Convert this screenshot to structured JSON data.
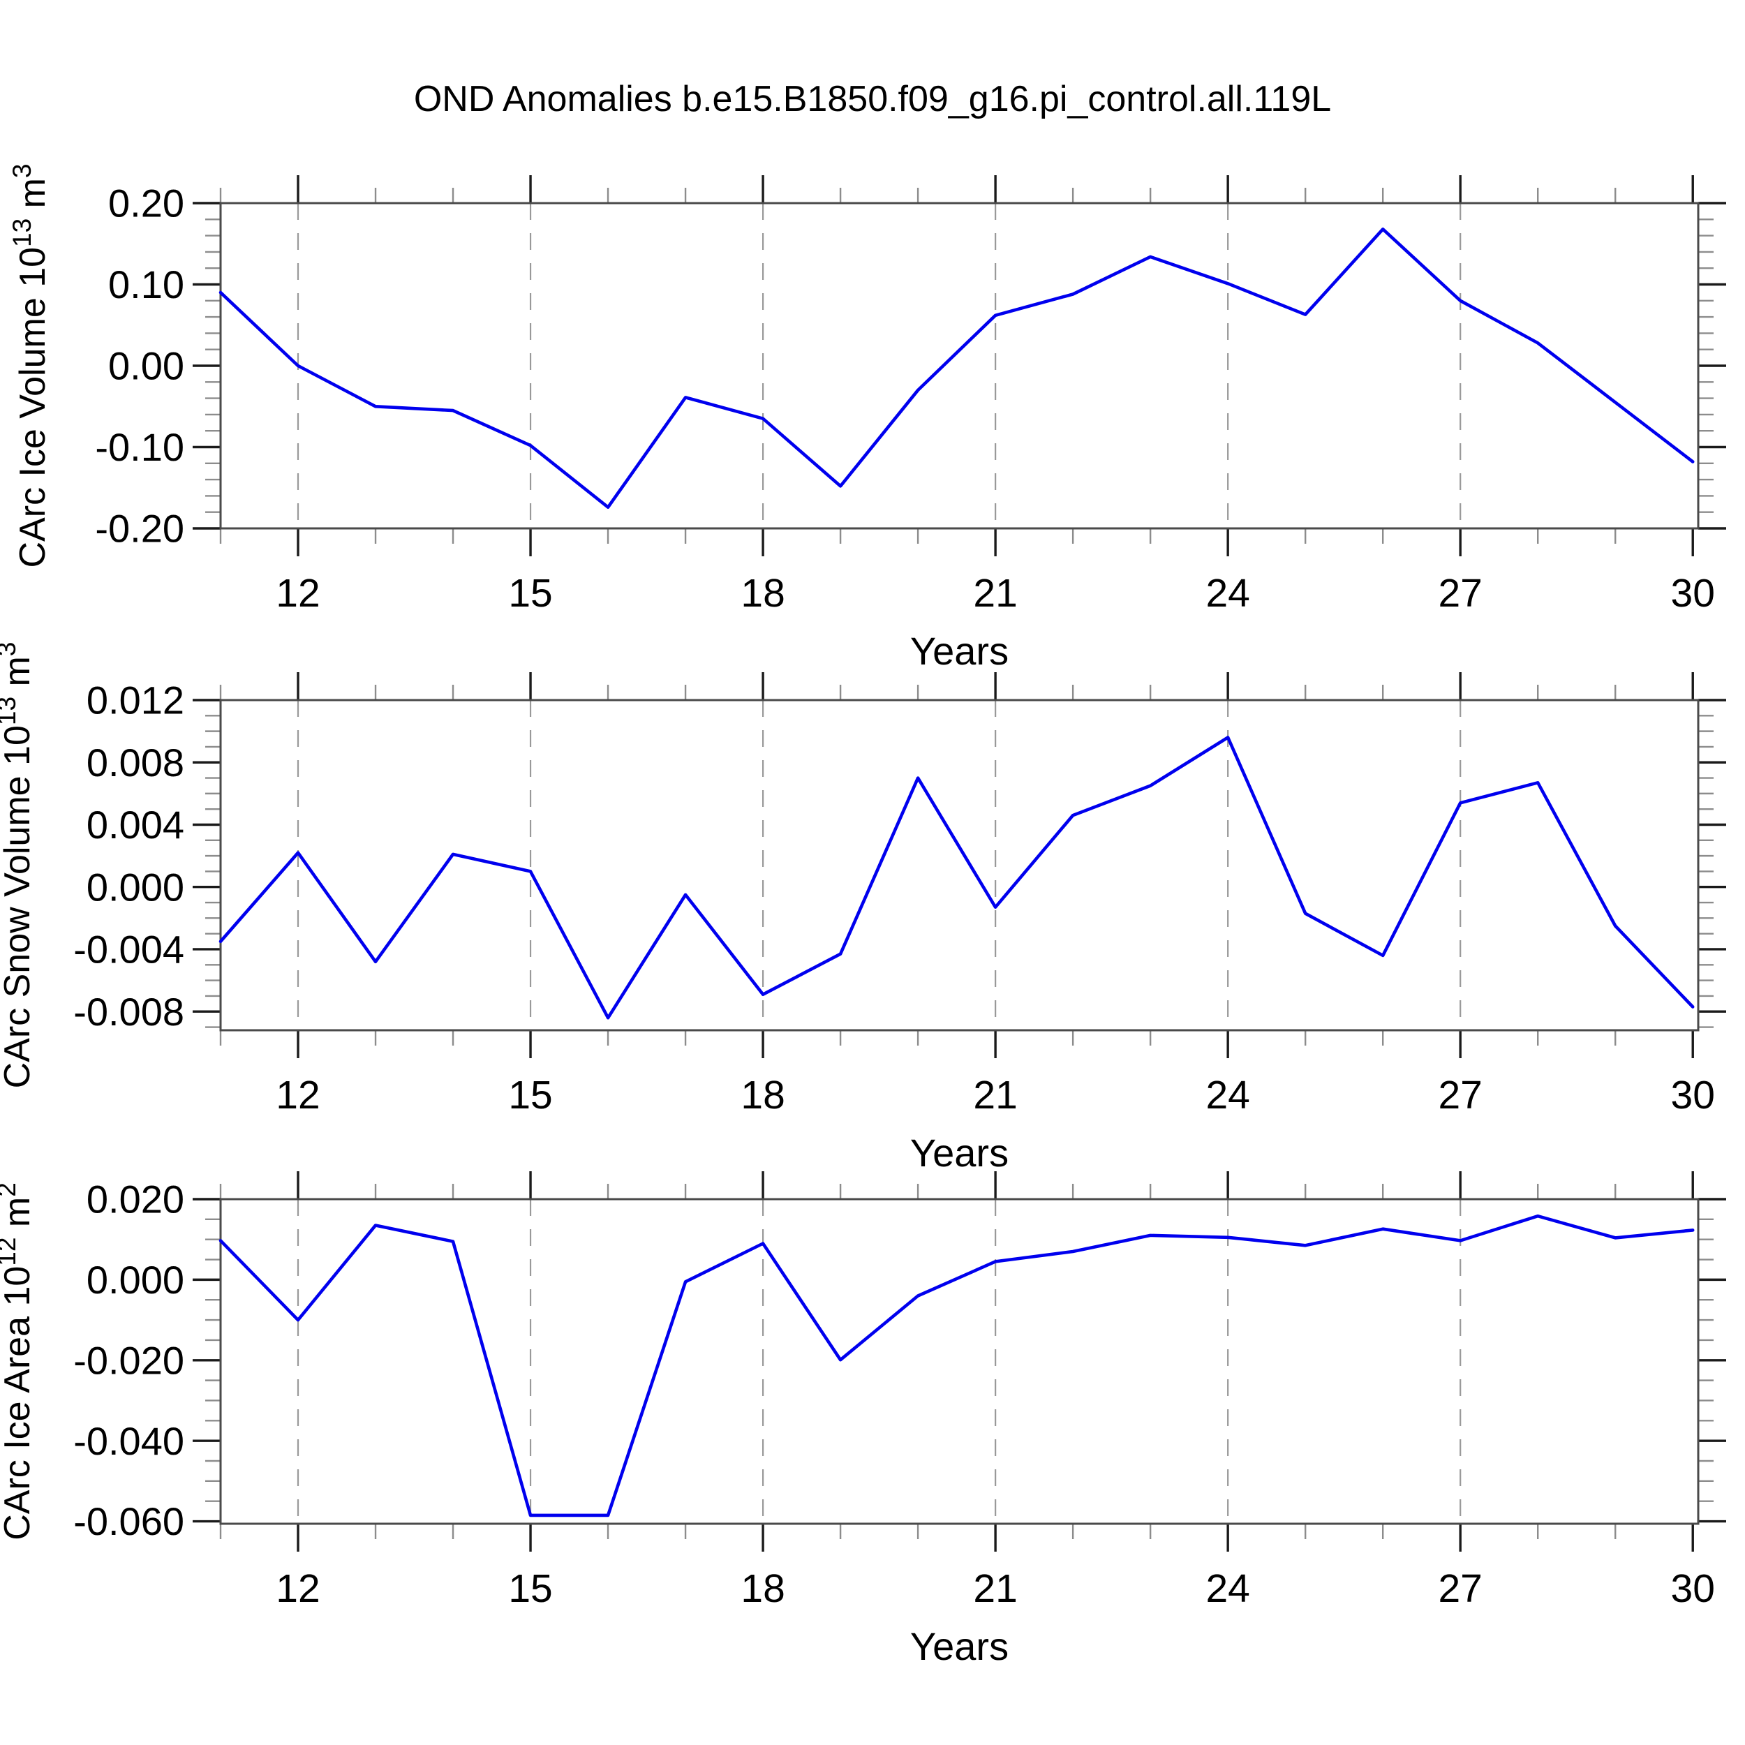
{
  "title": "OND Anomalies b.e15.B1850.f09_g16.pi_control.all.119L",
  "x_axis": {
    "label": "Years",
    "xlim": [
      11,
      30.07
    ],
    "major_ticks": [
      12,
      15,
      18,
      21,
      24,
      27,
      30
    ],
    "minor_step": 1,
    "grid": "vertical-dashed"
  },
  "colors": {
    "line": "#0000EE",
    "box": "#4a4a4a",
    "major_tick": "#1a1a1a",
    "minor_tick": "#8c8c8c",
    "grid": "#999999",
    "text": "#000000",
    "background": "#ffffff"
  },
  "chart_data": [
    {
      "id": "ice-volume",
      "type": "line",
      "ylabel_runs": [
        {
          "t": "CArc Ice Volume 10"
        },
        {
          "t": "13",
          "sup": true
        },
        {
          "t": " m"
        },
        {
          "t": "3",
          "sup": true
        }
      ],
      "ylim": [
        -0.2,
        0.2
      ],
      "ytick_vals": [
        0.2,
        0.1,
        0.0,
        -0.1,
        -0.2
      ],
      "ytick_labels": [
        "0.20",
        "0.10",
        "0.00",
        "-0.10",
        "-0.20"
      ],
      "yminor_step": 0.02,
      "x": [
        11,
        12,
        13,
        14,
        15,
        16,
        17,
        18,
        19,
        20,
        21,
        22,
        23,
        24,
        25,
        26,
        27,
        28,
        29,
        30
      ],
      "values": [
        0.09,
        0.0,
        -0.05,
        -0.055,
        -0.098,
        -0.174,
        -0.039,
        -0.065,
        -0.148,
        -0.03,
        0.062,
        0.088,
        0.134,
        0.101,
        0.063,
        0.168,
        0.08,
        0.028,
        -0.045,
        -0.118
      ]
    },
    {
      "id": "snow-volume",
      "type": "line",
      "ylabel_runs": [
        {
          "t": "CArc Snow Volume 10"
        },
        {
          "t": "13",
          "sup": true
        },
        {
          "t": " m"
        },
        {
          "t": "3",
          "sup": true
        }
      ],
      "ylim": [
        -0.0092,
        0.012
      ],
      "ytick_vals": [
        0.012,
        0.008,
        0.004,
        0.0,
        -0.004,
        -0.008
      ],
      "ytick_labels": [
        "0.012",
        "0.008",
        "0.004",
        "0.000",
        "-0.004",
        "-0.008"
      ],
      "yminor_step": 0.001,
      "x": [
        11,
        12,
        13,
        14,
        15,
        16,
        17,
        18,
        19,
        20,
        21,
        22,
        23,
        24,
        25,
        26,
        27,
        28,
        29,
        30
      ],
      "values": [
        -0.0035,
        0.0022,
        -0.0048,
        0.0021,
        0.001,
        -0.0084,
        -0.0005,
        -0.0069,
        -0.0043,
        0.007,
        -0.0013,
        0.0046,
        0.0065,
        0.0096,
        -0.0017,
        -0.0044,
        0.0054,
        0.0067,
        -0.0025,
        -0.0077
      ]
    },
    {
      "id": "ice-area",
      "type": "line",
      "ylabel_runs": [
        {
          "t": "CArc Ice Area 10"
        },
        {
          "t": "12",
          "sup": true
        },
        {
          "t": " m"
        },
        {
          "t": "2",
          "sup": true
        }
      ],
      "ylim": [
        -0.0606,
        0.02
      ],
      "ytick_vals": [
        0.02,
        0.0,
        -0.02,
        -0.04,
        -0.06
      ],
      "ytick_labels": [
        "0.020",
        "0.000",
        "-0.020",
        "-0.040",
        "-0.060"
      ],
      "yminor_step": 0.005,
      "x": [
        11,
        12,
        13,
        14,
        15,
        16,
        17,
        18,
        19,
        20,
        21,
        22,
        23,
        24,
        25,
        26,
        27,
        28,
        29,
        30
      ],
      "values": [
        0.0097,
        -0.01,
        0.0135,
        0.0095,
        -0.0585,
        -0.0585,
        -0.0005,
        0.009,
        -0.0199,
        -0.004,
        0.0045,
        0.007,
        0.011,
        0.0105,
        0.0085,
        0.0126,
        0.0097,
        0.0158,
        0.0104,
        0.0123
      ]
    }
  ]
}
